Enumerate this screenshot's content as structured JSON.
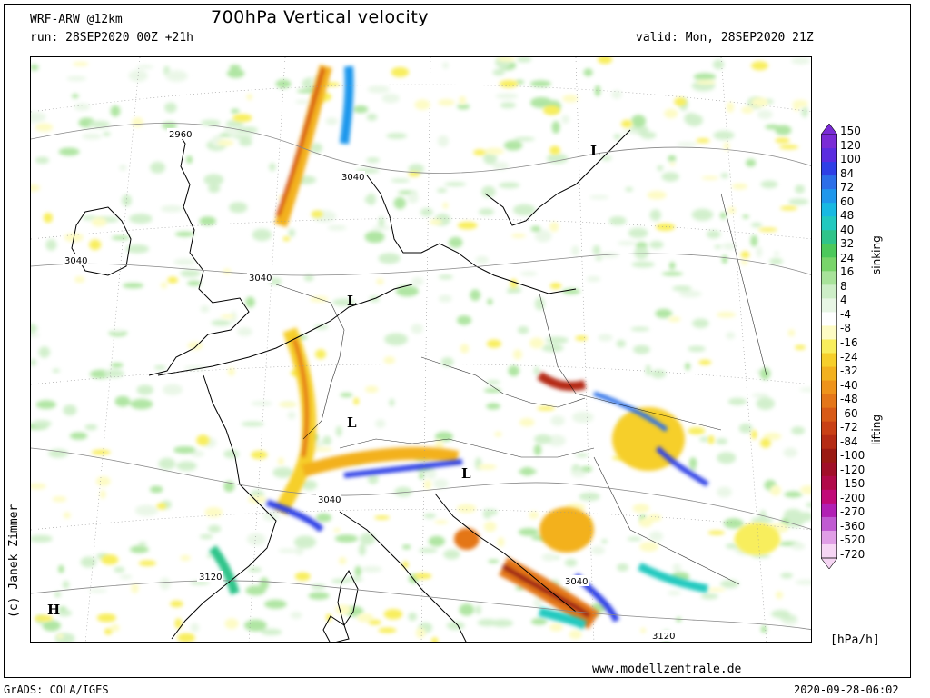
{
  "header": {
    "model": "WRF-ARW @12km",
    "run": "run: 28SEP2020 00Z +21h",
    "title": "700hPa Vertical velocity",
    "valid": "valid: Mon, 28SEP2020 21Z"
  },
  "map": {
    "pressure_centers": [
      {
        "label": "L",
        "region": "North Sea / Netherlands"
      },
      {
        "label": "L",
        "region": "Germany"
      },
      {
        "label": "L",
        "region": "Austria"
      },
      {
        "label": "L",
        "region": "Baltic / Lithuania"
      },
      {
        "label": "H",
        "region": "Atlantic / Bay of Biscay"
      }
    ],
    "contour_labels": [
      "2960",
      "3040",
      "3040",
      "3040",
      "3040",
      "3040",
      "3120",
      "3120"
    ]
  },
  "colorbar": {
    "ticks": [
      "150",
      "120",
      "100",
      "84",
      "72",
      "60",
      "48",
      "40",
      "32",
      "24",
      "16",
      "8",
      "4",
      "-4",
      "-8",
      "-16",
      "-24",
      "-32",
      "-40",
      "-48",
      "-60",
      "-72",
      "-84",
      "-100",
      "-120",
      "-150",
      "-200",
      "-270",
      "-360",
      "-520",
      "-720"
    ],
    "colors": [
      "#7a2bd6",
      "#5a2ce0",
      "#2f3fe6",
      "#2c6fe8",
      "#1f97ec",
      "#18b9e2",
      "#22c9bf",
      "#2fc48a",
      "#4cc95b",
      "#79d56a",
      "#a8e39a",
      "#cdeec7",
      "#e8f6e5",
      "#ffffff",
      "#fdfbc4",
      "#f8ee5d",
      "#f6cf2b",
      "#f3b11f",
      "#ee931b",
      "#e47619",
      "#d85a17",
      "#c94015",
      "#b52b14",
      "#9b1a12",
      "#a10f28",
      "#b10a4a",
      "#c10a78",
      "#b11fb4",
      "#c05ad2",
      "#e09ee6",
      "#f6d6f4"
    ],
    "sinking_label": "sinking",
    "lifting_label": "lifting",
    "unit": "[hPa/h]"
  },
  "footer": {
    "copyright": "(c) Janek Zimmer",
    "website": "www.modellzentrale.de",
    "grads": "GrADS: COLA/IGES",
    "timestamp": "2020-09-28-06:02"
  }
}
